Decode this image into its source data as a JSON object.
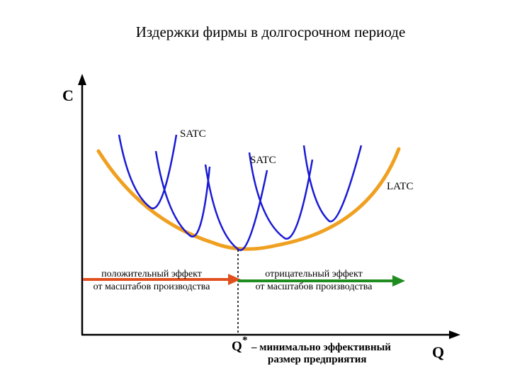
{
  "title": "Издержки фирмы в долгосрочном периоде",
  "axes": {
    "y_label": "C",
    "x_label": "Q"
  },
  "curves": {
    "satc_label_1": "SATC",
    "satc_label_2": "SATC",
    "latc_label": "LATC"
  },
  "effects": {
    "positive_line1": "положительный эффект",
    "positive_line2": "от масштабов производства",
    "negative_line1": "отрицательный эффект",
    "negative_line2": "от масштабов производства"
  },
  "optimum": {
    "symbol": "Q",
    "superscript": "*",
    "caption_line1": "– минимально эффективный",
    "caption_line2": "размер предприятия"
  },
  "colors": {
    "latc": "#f0a020",
    "satc": "#1a1ad6",
    "positive_arrow": "#e0501e",
    "negative_arrow": "#1e8c1e",
    "axis": "#000000"
  }
}
